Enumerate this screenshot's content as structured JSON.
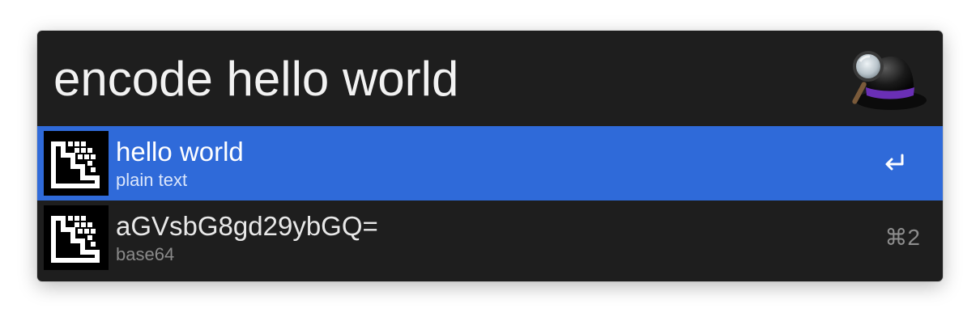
{
  "search": {
    "query": "encode hello world"
  },
  "app": {
    "logo_icon": "alfred-hat-magnifier-icon"
  },
  "results": [
    {
      "title": "hello world",
      "subtitle": "plain text",
      "icon": "encoder-workflow-icon",
      "selected": true,
      "action_icon": "return-key-icon"
    },
    {
      "title": "aGVsbG8gd29ybGQ=",
      "subtitle": "base64",
      "icon": "encoder-workflow-icon",
      "selected": false,
      "shortcut": "⌘2"
    }
  ],
  "colors": {
    "window_bg": "#1e1e1e",
    "selection": "#2f6ad9",
    "hat_band": "#6a2fb5"
  }
}
